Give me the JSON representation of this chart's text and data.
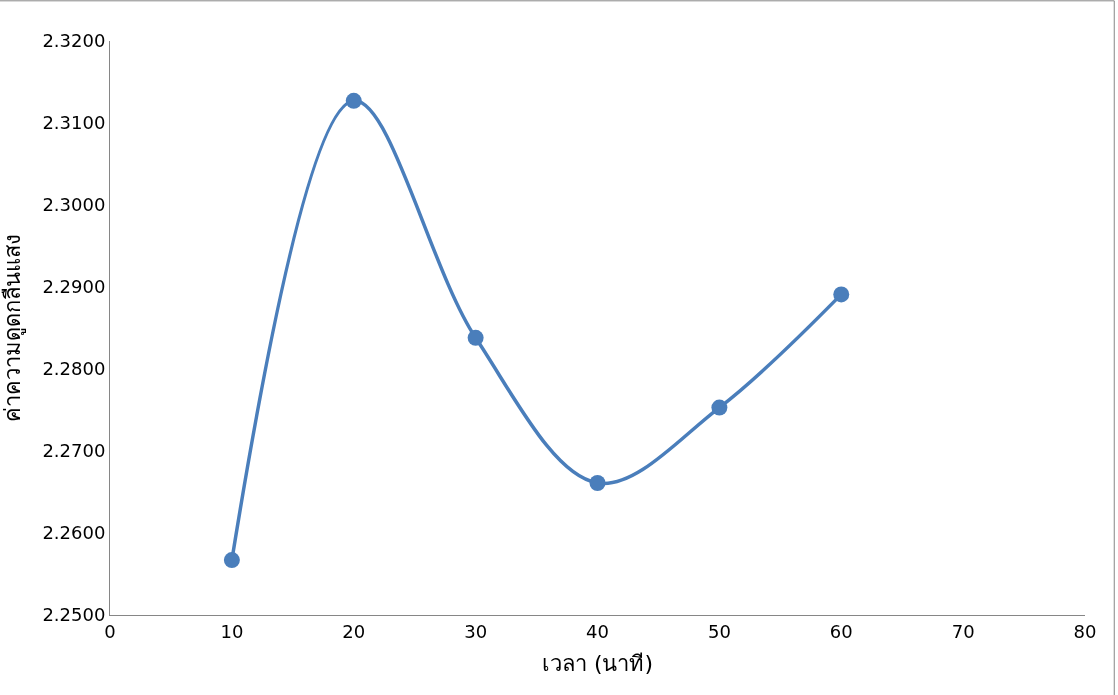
{
  "chart_data": {
    "type": "line",
    "xlabel": "เวลา (นาที)",
    "ylabel": "ค่าความดูดกลืนแสง",
    "x": [
      10,
      20,
      30,
      40,
      50,
      60
    ],
    "series": [
      {
        "color": "#4a7ebb",
        "values": [
          2.2567,
          2.3127,
          2.2838,
          2.2661,
          2.2753,
          2.2891
        ]
      }
    ],
    "xlim": [
      0,
      80
    ],
    "xticks": [
      0,
      10,
      20,
      30,
      40,
      50,
      60,
      70,
      80
    ],
    "ylim": [
      2.25,
      2.32
    ],
    "yticks": [
      {
        "value": 2.25,
        "label": "2.2500"
      },
      {
        "value": 2.26,
        "label": "2.2600"
      },
      {
        "value": 2.27,
        "label": "2.2700"
      },
      {
        "value": 2.28,
        "label": "2.2800"
      },
      {
        "value": 2.29,
        "label": "2.2900"
      },
      {
        "value": 2.3,
        "label": "2.3000"
      },
      {
        "value": 2.31,
        "label": "2.3100"
      },
      {
        "value": 2.32,
        "label": "2.3200"
      }
    ],
    "legend": false,
    "marker": "circle",
    "line_style": "solid"
  }
}
